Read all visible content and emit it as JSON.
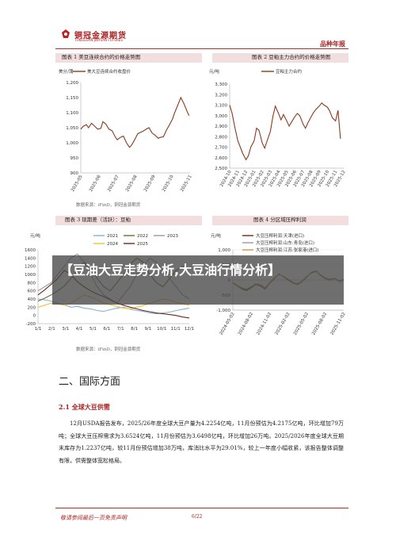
{
  "header": {
    "company_cn": "铜冠金源期货",
    "company_en": "TONGGUAN JINYUAN FUTURES",
    "report_type": "品种年报"
  },
  "figures": [
    {
      "title": "图表 1 美豆连续合约的价格走势图",
      "source": "数据来源：iFinD，铜冠金源期货",
      "chart_data": {
        "type": "line",
        "ylabel": "美分/蒲",
        "ylim": [
          900,
          1200
        ],
        "yticks": [
          "1,200",
          "1,150",
          "1,100",
          "1,050",
          "1,000",
          "950",
          "900"
        ],
        "xticks": [
          "2025-05",
          "2025-06",
          "2025-07",
          "2025-08",
          "2025-09",
          "2025-10",
          "2025-11"
        ],
        "series": [
          {
            "name": "美大豆连续合约收盘价",
            "color": "#8b3a1c",
            "x": [
              "2025-05-01",
              "2025-05-06",
              "2025-05-12",
              "2025-05-16",
              "2025-05-22",
              "2025-05-28",
              "2025-06-03",
              "2025-06-09",
              "2025-06-13",
              "2025-06-19",
              "2025-06-25",
              "2025-07-01",
              "2025-07-07",
              "2025-07-11",
              "2025-07-17",
              "2025-07-23",
              "2025-07-29",
              "2025-08-04",
              "2025-08-08",
              "2025-08-14",
              "2025-08-20",
              "2025-08-26",
              "2025-09-01",
              "2025-09-05",
              "2025-09-11",
              "2025-09-17",
              "2025-09-23",
              "2025-09-29",
              "2025-10-03",
              "2025-10-09",
              "2025-10-15",
              "2025-10-21",
              "2025-10-27",
              "2025-10-31",
              "2025-11-06",
              "2025-11-12",
              "2025-11-18",
              "2025-11-24",
              "2025-11-28"
            ],
            "y": [
              1045,
              1055,
              1060,
              1050,
              1065,
              1055,
              1045,
              1048,
              1070,
              1062,
              1045,
              1040,
              1020,
              1010,
              1018,
              1022,
              1000,
              985,
              992,
              1010,
              1030,
              1035,
              1040,
              1045,
              1050,
              1032,
              1025,
              1015,
              1018,
              1020,
              1042,
              1060,
              1080,
              1100,
              1125,
              1150,
              1130,
              1105,
              1090
            ]
          }
        ]
      }
    },
    {
      "title": "图表 2 豆粕主力合约的价格走势图",
      "source": "",
      "chart_data": {
        "type": "line",
        "ylabel": "元/吨",
        "ylim": [
          2500,
          3300
        ],
        "yticks": [
          "3,300",
          "3,200",
          "3,100",
          "3,000",
          "2,900",
          "2,800",
          "2,700",
          "2,600",
          "2,500"
        ],
        "xticks": [
          "2024-10",
          "2024-11",
          "2024-12",
          "2025-01",
          "2025-02",
          "2025-03",
          "2025-04",
          "2025-05",
          "2025-06",
          "2025-07",
          "2025-08",
          "2025-09",
          "2025-10",
          "2025-11",
          "2025-12"
        ],
        "series": [
          {
            "name": "豆粕主力合约",
            "color": "#8b3a1c",
            "x": [
              0,
              0.3,
              0.6,
              1,
              1.3,
              1.6,
              2,
              2.3,
              2.6,
              3,
              3.3,
              3.6,
              4,
              4.3,
              4.6,
              5,
              5.3,
              5.6,
              6,
              6.3,
              6.6,
              7,
              7.3,
              7.6,
              8,
              8.3,
              8.6,
              9,
              9.3,
              9.6,
              10,
              10.3,
              10.6,
              11,
              11.3,
              11.6,
              12,
              12.3,
              12.6,
              13,
              13.3,
              13.6
            ],
            "y": [
              3100,
              3020,
              2900,
              2760,
              2700,
              2640,
              2580,
              2620,
              2700,
              2760,
              2880,
              2860,
              2740,
              2690,
              2760,
              2850,
              2990,
              3090,
              3020,
              2960,
              3010,
              2950,
              2900,
              2940,
              2990,
              3020,
              3000,
              2920,
              2880,
              2930,
              2990,
              3030,
              3060,
              3090,
              3120,
              3100,
              3080,
              3040,
              2980,
              2950,
              3050,
              2780
            ]
          }
        ]
      }
    },
    {
      "title": "图表 3 现期差（活跃）：豆粕",
      "source": "数据来源：iFinD，铜冠金源期货",
      "chart_data": {
        "type": "line",
        "ylabel": "元/吨",
        "ylim": [
          -200,
          1600
        ],
        "yticks": [
          "1600",
          "1400",
          "1200",
          "1000",
          "800",
          "600",
          "400",
          "200",
          "0",
          "-200"
        ],
        "xticks": [
          "1/1",
          "2/1",
          "3/1",
          "4/1",
          "5/1",
          "6/1",
          "7/1",
          "8/1",
          "9/1",
          "10/1",
          "11/1",
          "12/1"
        ],
        "series": [
          {
            "name": "2021",
            "color": "#7fb3d8",
            "y": [
              400,
              380,
              350,
              300,
              260,
              200,
              220,
              180,
              160,
              120,
              100,
              140,
              180,
              200,
              150,
              120,
              100,
              60,
              40,
              60,
              80,
              120,
              150,
              180
            ]
          },
          {
            "name": "2022",
            "color": "#6e6e2e",
            "y": [
              350,
              420,
              500,
              600,
              720,
              900,
              1100,
              1300,
              1200,
              900,
              700,
              600,
              800,
              1000,
              1250,
              1400,
              1300,
              1000,
              800,
              700,
              900,
              1100,
              1200,
              1000
            ]
          },
          {
            "name": "2023",
            "color": "#999999",
            "y": [
              600,
              700,
              800,
              1000,
              1200,
              1400,
              1500,
              1300,
              1000,
              700,
              500,
              400,
              300,
              500,
              700,
              1000,
              1200,
              1400,
              1300,
              1100,
              900,
              700,
              500,
              400
            ]
          },
          {
            "name": "2024",
            "color": "#f0c040",
            "y": [
              200,
              250,
              300,
              280,
              250,
              300,
              400,
              500,
              450,
              380,
              300,
              260,
              220,
              180,
              160,
              200,
              240,
              300,
              350,
              400,
              380,
              320,
              280,
              250
            ]
          },
          {
            "name": "2025",
            "color": "#6b2a1a",
            "y": [
              500,
              620,
              760,
              900,
              1100,
              1000,
              820,
              700,
              600,
              520,
              460,
              380,
              300,
              250,
              200,
              160,
              120,
              90,
              60,
              40,
              20,
              0,
              -40,
              -60
            ]
          }
        ]
      }
    },
    {
      "title": "图表 4 分区域压榨利润",
      "source": "数据来源：iFinD，铜冠金源期货",
      "chart_data": {
        "type": "line",
        "ylabel": "元/吨",
        "ylim": [
          -1000,
          1000
        ],
        "yticks": [
          "1,000",
          "500",
          "0",
          "-500",
          "-1,000"
        ],
        "xticks": [
          "2024-05-02",
          "2024-08-02",
          "2024-11-02",
          "2025-02-02",
          "2025-05-02",
          "2025-08-02",
          "2025-11-02"
        ],
        "series": [
          {
            "name": "大豆压榨利润:天津(进口)",
            "color": "#6b2a1a",
            "y": [
              -100,
              -200,
              -300,
              -350,
              -250,
              -150,
              -200,
              -300,
              -100,
              50,
              200,
              100,
              0,
              -100,
              -150,
              -50,
              100,
              250,
              300,
              150,
              50,
              0,
              50,
              -50,
              0
            ]
          },
          {
            "name": "大豆压榨利润:山东:青岛(进口)",
            "color": "#999999",
            "y": [
              -80,
              -180,
              -260,
              -300,
              -220,
              -120,
              -160,
              -260,
              -80,
              70,
              180,
              120,
              20,
              -80,
              -120,
              -30,
              120,
              230,
              280,
              170,
              70,
              20,
              60,
              -30,
              20
            ]
          },
          {
            "name": "大豆压榨利润:江苏:张家港(进口)",
            "color": "#c09a4a",
            "y": [
              -90,
              -190,
              -280,
              -320,
              -230,
              -140,
              -180,
              -280,
              -90,
              60,
              190,
              110,
              10,
              -90,
              -140,
              -40,
              110,
              240,
              290,
              160,
              60,
              10,
              55,
              -40,
              10
            ]
          }
        ]
      }
    }
  ],
  "banner": {
    "text": "【豆油大豆走势分析,大豆油行情分析】"
  },
  "section": {
    "title": "二、国际方面",
    "subtitle": "2.1 全球大豆供需",
    "paragraph": "12月USDA报告发布，2025/26年度全球大豆产量为4.2254亿吨，11月份预估为4.2175亿吨，环比增加79万吨；全球大豆压榨需求为3.6524亿吨，11月份预估为3.6498亿吨，环比增加26万吨。2025/2026年度全球大豆期末库存为1.2237亿吨，较11月份预估增加38万吨，库消比水平为29.01%，较上一年度小幅收紧，该报告整体调整有限，供需整体宽松格局。"
  },
  "footer": {
    "disclaimer": "敬请参阅最后一页免责声明",
    "page": "6/22"
  }
}
